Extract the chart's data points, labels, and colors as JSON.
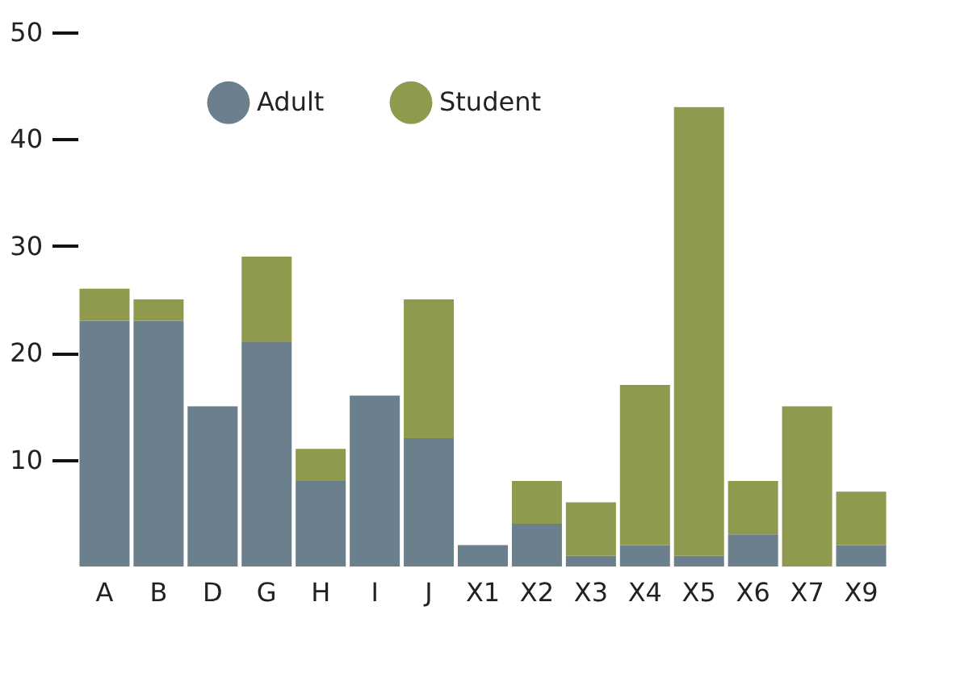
{
  "chart_data": {
    "type": "bar",
    "stacked": true,
    "categories": [
      "A",
      "B",
      "D",
      "G",
      "H",
      "I",
      "J",
      "X1",
      "X2",
      "X3",
      "X4",
      "X5",
      "X6",
      "X7",
      "X9"
    ],
    "series": [
      {
        "name": "Adult",
        "color": "#6b7f8c",
        "values": [
          23,
          23,
          15,
          21,
          8,
          16,
          12,
          2,
          4,
          1,
          2,
          1,
          3,
          0,
          2
        ]
      },
      {
        "name": "Student",
        "color": "#8f9a4e",
        "values": [
          3,
          2,
          0,
          8,
          3,
          0,
          13,
          0,
          4,
          5,
          15,
          42,
          5,
          15,
          5
        ]
      }
    ],
    "ylim": [
      0,
      50
    ],
    "yticks": [
      10,
      20,
      30,
      40,
      50
    ],
    "grid": false,
    "legend": "top"
  }
}
